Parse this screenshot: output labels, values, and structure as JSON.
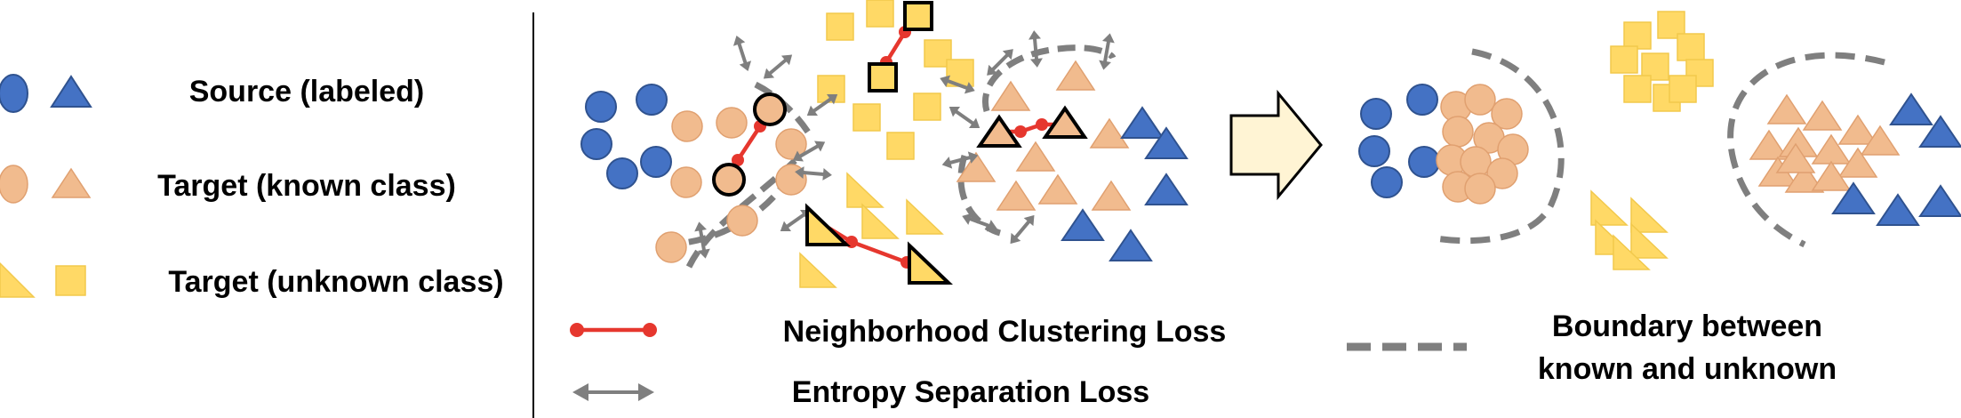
{
  "legend": {
    "source": "Source (labeled)",
    "target_known": "Target (known class)",
    "target_unknown": "Target (unknown class)"
  },
  "losses": {
    "neighborhood": "Neighborhood Clustering Loss",
    "entropy": "Entropy Separation Loss"
  },
  "boundary": {
    "line1": "Boundary between",
    "line2": "known and unknown"
  },
  "colors": {
    "source_blue": "#4472C4",
    "target_known_orange": "#F1BB8E",
    "target_unknown_yellow": "#FFD966",
    "nc_red": "#E6372E",
    "es_gray": "#7F7F7F",
    "arrow_fill": "#FFF4D4"
  }
}
